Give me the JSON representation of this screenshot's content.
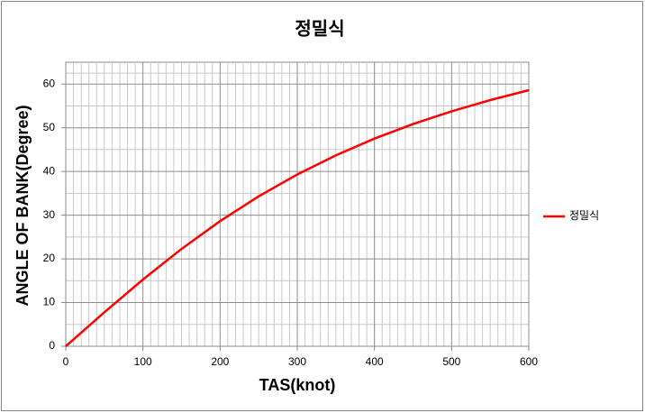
{
  "chart_data": {
    "type": "line",
    "title": "정밀식",
    "x_label": "TAS(knot)",
    "y_label": "ANGLE OF BANK(Degree)",
    "x": [
      0,
      50,
      100,
      150,
      200,
      250,
      300,
      350,
      400,
      450,
      500,
      550,
      600
    ],
    "series": [
      {
        "name": "정밀식",
        "color": "#ff0000",
        "values": [
          0,
          7.77,
          15.27,
          22.27,
          28.64,
          34.31,
          39.32,
          43.69,
          47.52,
          50.85,
          53.77,
          56.33,
          58.6
        ]
      }
    ],
    "xlim": [
      0,
      600
    ],
    "xticks": [
      0,
      100,
      200,
      300,
      400,
      500,
      600
    ],
    "ylim": [
      0,
      65
    ],
    "yticks": [
      0,
      10,
      20,
      30,
      40,
      50,
      60
    ],
    "grid": true,
    "legend": "right"
  }
}
